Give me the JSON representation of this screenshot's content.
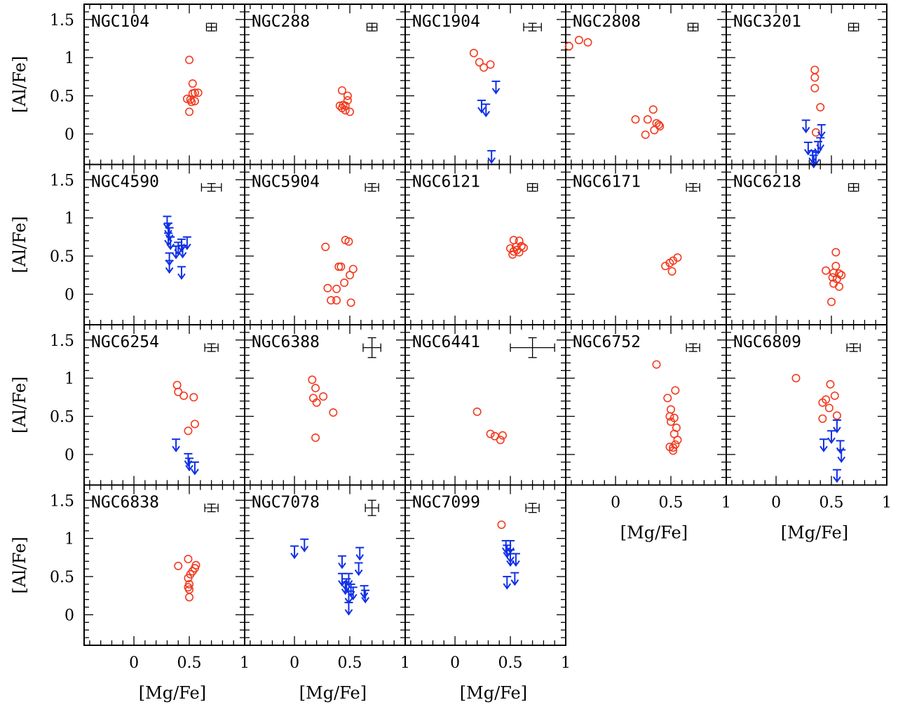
{
  "chart_data": {
    "type": "scatter",
    "layout": "multi-panel grid, 4 rows x 5 columns",
    "xlabel": "[Mg/Fe]",
    "ylabel": "[Al/Fe]",
    "xlim": [
      -0.45,
      1.0
    ],
    "ylim": [
      -0.4,
      1.7
    ],
    "xticks": [
      0,
      0.5,
      1
    ],
    "yticks": [
      0,
      0.5,
      1,
      1.5
    ],
    "xtick_labels": [
      "0",
      "0.5",
      "1"
    ],
    "ytick_labels": [
      "0",
      "0.5",
      "1",
      "1.5"
    ],
    "grid": false,
    "colors": {
      "measurement": "#f23a1f",
      "upper_limit": "#1030e6",
      "frame": "#000000"
    },
    "marker_types": {
      "measurement": "open-circle",
      "upper_limit": "down-arrow"
    },
    "panels": [
      {
        "name": "NGC104",
        "row": 0,
        "col": 0,
        "errorbar": {
          "x": 0.7,
          "y": 1.4,
          "dx": 0.045,
          "dy": 0.05
        },
        "measurements": [
          [
            0.5,
            0.97
          ],
          [
            0.53,
            0.66
          ],
          [
            0.48,
            0.46
          ],
          [
            0.51,
            0.45
          ],
          [
            0.53,
            0.53
          ],
          [
            0.55,
            0.54
          ],
          [
            0.58,
            0.54
          ],
          [
            0.55,
            0.43
          ],
          [
            0.52,
            0.42
          ],
          [
            0.5,
            0.29
          ]
        ],
        "upper_limits": []
      },
      {
        "name": "NGC288",
        "row": 0,
        "col": 1,
        "errorbar": {
          "x": 0.7,
          "y": 1.4,
          "dx": 0.045,
          "dy": 0.05
        },
        "measurements": [
          [
            0.43,
            0.57
          ],
          [
            0.48,
            0.5
          ],
          [
            0.48,
            0.44
          ],
          [
            0.41,
            0.37
          ],
          [
            0.44,
            0.38
          ],
          [
            0.46,
            0.37
          ],
          [
            0.43,
            0.34
          ],
          [
            0.46,
            0.31
          ],
          [
            0.5,
            0.29
          ]
        ],
        "upper_limits": []
      },
      {
        "name": "NGC1904",
        "row": 0,
        "col": 2,
        "errorbar": {
          "x": 0.7,
          "y": 1.4,
          "dx": 0.08,
          "dy": 0.05
        },
        "measurements": [
          [
            0.17,
            1.06
          ],
          [
            0.22,
            0.94
          ],
          [
            0.32,
            0.91
          ],
          [
            0.26,
            0.87
          ]
        ],
        "upper_limits": [
          [
            0.24,
            0.44
          ],
          [
            0.28,
            0.39
          ],
          [
            0.37,
            0.69
          ],
          [
            0.33,
            -0.22
          ]
        ]
      },
      {
        "name": "NGC2808",
        "row": 0,
        "col": 3,
        "errorbar": {
          "x": 0.7,
          "y": 1.4,
          "dx": 0.045,
          "dy": 0.05
        },
        "measurements": [
          [
            -0.42,
            1.15
          ],
          [
            -0.33,
            1.23
          ],
          [
            -0.25,
            1.2
          ],
          [
            0.18,
            0.19
          ],
          [
            0.29,
            0.19
          ],
          [
            0.34,
            0.32
          ],
          [
            0.37,
            0.14
          ],
          [
            0.39,
            0.12
          ],
          [
            0.4,
            0.1
          ],
          [
            0.35,
            0.05
          ],
          [
            0.27,
            -0.01
          ]
        ],
        "upper_limits": []
      },
      {
        "name": "NGC3201",
        "row": 0,
        "col": 4,
        "errorbar": {
          "x": 0.7,
          "y": 1.4,
          "dx": 0.045,
          "dy": 0.05
        },
        "measurements": [
          [
            0.35,
            0.84
          ],
          [
            0.35,
            0.74
          ],
          [
            0.35,
            0.6
          ],
          [
            0.4,
            0.35
          ],
          [
            0.36,
            0.02
          ]
        ],
        "upper_limits": [
          [
            0.27,
            0.18
          ],
          [
            0.41,
            0.12
          ],
          [
            0.29,
            -0.11
          ],
          [
            0.4,
            -0.05
          ],
          [
            0.38,
            -0.1
          ],
          [
            0.33,
            -0.22
          ],
          [
            0.36,
            -0.24
          ],
          [
            0.34,
            -0.28
          ]
        ]
      },
      {
        "name": "NGC4590",
        "row": 1,
        "col": 0,
        "errorbar": {
          "x": 0.7,
          "y": 1.4,
          "dx": 0.09,
          "dy": 0.05
        },
        "measurements": [],
        "upper_limits": [
          [
            0.3,
            1.02
          ],
          [
            0.31,
            0.93
          ],
          [
            0.32,
            0.87
          ],
          [
            0.31,
            0.8
          ],
          [
            0.33,
            0.75
          ],
          [
            0.43,
            0.72
          ],
          [
            0.48,
            0.75
          ],
          [
            0.4,
            0.68
          ],
          [
            0.44,
            0.64
          ],
          [
            0.38,
            0.63
          ],
          [
            0.32,
            0.54
          ],
          [
            0.32,
            0.44
          ],
          [
            0.43,
            0.36
          ]
        ]
      },
      {
        "name": "NGC5904",
        "row": 1,
        "col": 1,
        "errorbar": {
          "x": 0.7,
          "y": 1.4,
          "dx": 0.06,
          "dy": 0.05
        },
        "measurements": [
          [
            0.28,
            0.62
          ],
          [
            0.46,
            0.71
          ],
          [
            0.49,
            0.69
          ],
          [
            0.4,
            0.36
          ],
          [
            0.42,
            0.36
          ],
          [
            0.53,
            0.33
          ],
          [
            0.5,
            0.25
          ],
          [
            0.45,
            0.15
          ],
          [
            0.3,
            0.08
          ],
          [
            0.38,
            0.07
          ],
          [
            0.33,
            -0.08
          ],
          [
            0.38,
            -0.08
          ],
          [
            0.51,
            -0.11
          ]
        ],
        "upper_limits": []
      },
      {
        "name": "NGC6121",
        "row": 1,
        "col": 2,
        "errorbar": {
          "x": 0.7,
          "y": 1.4,
          "dx": 0.045,
          "dy": 0.05
        },
        "measurements": [
          [
            0.53,
            0.71
          ],
          [
            0.58,
            0.7
          ],
          [
            0.5,
            0.6
          ],
          [
            0.55,
            0.62
          ],
          [
            0.6,
            0.63
          ],
          [
            0.62,
            0.61
          ],
          [
            0.56,
            0.58
          ],
          [
            0.53,
            0.56
          ],
          [
            0.58,
            0.55
          ],
          [
            0.52,
            0.52
          ]
        ],
        "upper_limits": []
      },
      {
        "name": "NGC6171",
        "row": 1,
        "col": 3,
        "errorbar": {
          "x": 0.7,
          "y": 1.4,
          "dx": 0.06,
          "dy": 0.05
        },
        "measurements": [
          [
            0.45,
            0.37
          ],
          [
            0.49,
            0.41
          ],
          [
            0.52,
            0.44
          ],
          [
            0.56,
            0.48
          ],
          [
            0.51,
            0.3
          ]
        ],
        "upper_limits": []
      },
      {
        "name": "NGC6218",
        "row": 1,
        "col": 4,
        "errorbar": {
          "x": 0.7,
          "y": 1.4,
          "dx": 0.045,
          "dy": 0.05
        },
        "measurements": [
          [
            0.54,
            0.55
          ],
          [
            0.54,
            0.37
          ],
          [
            0.45,
            0.31
          ],
          [
            0.52,
            0.28
          ],
          [
            0.57,
            0.27
          ],
          [
            0.51,
            0.22
          ],
          [
            0.59,
            0.25
          ],
          [
            0.55,
            0.2
          ],
          [
            0.52,
            0.14
          ],
          [
            0.57,
            0.1
          ],
          [
            0.5,
            -0.1
          ]
        ],
        "upper_limits": []
      },
      {
        "name": "NGC6254",
        "row": 2,
        "col": 0,
        "errorbar": {
          "x": 0.7,
          "y": 1.4,
          "dx": 0.06,
          "dy": 0.05
        },
        "measurements": [
          [
            0.39,
            0.91
          ],
          [
            0.4,
            0.82
          ],
          [
            0.45,
            0.77
          ],
          [
            0.54,
            0.75
          ],
          [
            0.55,
            0.4
          ],
          [
            0.49,
            0.31
          ]
        ],
        "upper_limits": [
          [
            0.38,
            0.2
          ],
          [
            0.49,
            0.01
          ],
          [
            0.5,
            -0.05
          ],
          [
            0.55,
            -0.1
          ]
        ]
      },
      {
        "name": "NGC6388",
        "row": 2,
        "col": 1,
        "errorbar": {
          "x": 0.7,
          "y": 1.4,
          "dx": 0.08,
          "dy": 0.13
        },
        "measurements": [
          [
            0.16,
            0.98
          ],
          [
            0.19,
            0.87
          ],
          [
            0.26,
            0.76
          ],
          [
            0.17,
            0.74
          ],
          [
            0.2,
            0.68
          ],
          [
            0.35,
            0.55
          ],
          [
            0.19,
            0.22
          ]
        ],
        "upper_limits": []
      },
      {
        "name": "NGC6441",
        "row": 2,
        "col": 2,
        "errorbar": {
          "x": 0.7,
          "y": 1.4,
          "dx": 0.2,
          "dy": 0.13
        },
        "measurements": [
          [
            0.2,
            0.56
          ],
          [
            0.32,
            0.27
          ],
          [
            0.36,
            0.24
          ],
          [
            0.43,
            0.25
          ],
          [
            0.41,
            0.19
          ]
        ],
        "upper_limits": []
      },
      {
        "name": "NGC6752",
        "row": 2,
        "col": 3,
        "errorbar": {
          "x": 0.7,
          "y": 1.4,
          "dx": 0.06,
          "dy": 0.05
        },
        "measurements": [
          [
            0.37,
            1.18
          ],
          [
            0.54,
            0.84
          ],
          [
            0.47,
            0.74
          ],
          [
            0.5,
            0.59
          ],
          [
            0.49,
            0.5
          ],
          [
            0.53,
            0.48
          ],
          [
            0.5,
            0.43
          ],
          [
            0.55,
            0.35
          ],
          [
            0.53,
            0.27
          ],
          [
            0.56,
            0.19
          ],
          [
            0.54,
            0.13
          ],
          [
            0.49,
            0.1
          ],
          [
            0.52,
            0.09
          ],
          [
            0.52,
            0.05
          ]
        ],
        "upper_limits": []
      },
      {
        "name": "NGC6809",
        "row": 2,
        "col": 4,
        "errorbar": {
          "x": 0.7,
          "y": 1.4,
          "dx": 0.06,
          "dy": 0.05
        },
        "measurements": [
          [
            0.18,
            1.0
          ],
          [
            0.49,
            0.92
          ],
          [
            0.53,
            0.77
          ],
          [
            0.45,
            0.72
          ],
          [
            0.42,
            0.68
          ],
          [
            0.48,
            0.61
          ],
          [
            0.42,
            0.47
          ],
          [
            0.55,
            0.51
          ]
        ],
        "upper_limits": [
          [
            0.55,
            0.45
          ],
          [
            0.5,
            0.31
          ],
          [
            0.43,
            0.2
          ],
          [
            0.58,
            0.18
          ],
          [
            0.59,
            0.06
          ],
          [
            0.55,
            -0.2
          ]
        ]
      },
      {
        "name": "NGC6838",
        "row": 3,
        "col": 0,
        "errorbar": {
          "x": 0.7,
          "y": 1.4,
          "dx": 0.06,
          "dy": 0.05
        },
        "measurements": [
          [
            0.4,
            0.64
          ],
          [
            0.49,
            0.73
          ],
          [
            0.56,
            0.65
          ],
          [
            0.55,
            0.61
          ],
          [
            0.53,
            0.57
          ],
          [
            0.51,
            0.53
          ],
          [
            0.49,
            0.48
          ],
          [
            0.5,
            0.4
          ],
          [
            0.49,
            0.36
          ],
          [
            0.5,
            0.33
          ],
          [
            0.5,
            0.23
          ]
        ],
        "upper_limits": []
      },
      {
        "name": "NGC7078",
        "row": 3,
        "col": 1,
        "errorbar": {
          "x": 0.7,
          "y": 1.4,
          "dx": 0.06,
          "dy": 0.1
        },
        "measurements": [],
        "upper_limits": [
          [
            0.0,
            0.9
          ],
          [
            0.09,
            0.99
          ],
          [
            0.43,
            0.77
          ],
          [
            0.59,
            0.88
          ],
          [
            0.58,
            0.68
          ],
          [
            0.43,
            0.54
          ],
          [
            0.49,
            0.54
          ],
          [
            0.47,
            0.47
          ],
          [
            0.46,
            0.43
          ],
          [
            0.51,
            0.4
          ],
          [
            0.53,
            0.36
          ],
          [
            0.63,
            0.38
          ],
          [
            0.64,
            0.32
          ],
          [
            0.49,
            0.31
          ],
          [
            0.49,
            0.16
          ]
        ]
      },
      {
        "name": "NGC7099",
        "row": 3,
        "col": 2,
        "errorbar": {
          "x": 0.7,
          "y": 1.4,
          "dx": 0.06,
          "dy": 0.06
        },
        "measurements": [
          [
            0.42,
            1.18
          ]
        ],
        "upper_limits": [
          [
            0.46,
            0.97
          ],
          [
            0.5,
            0.97
          ],
          [
            0.47,
            0.91
          ],
          [
            0.5,
            0.85
          ],
          [
            0.5,
            0.8
          ],
          [
            0.55,
            0.8
          ],
          [
            0.47,
            0.5
          ],
          [
            0.54,
            0.55
          ]
        ]
      }
    ]
  }
}
